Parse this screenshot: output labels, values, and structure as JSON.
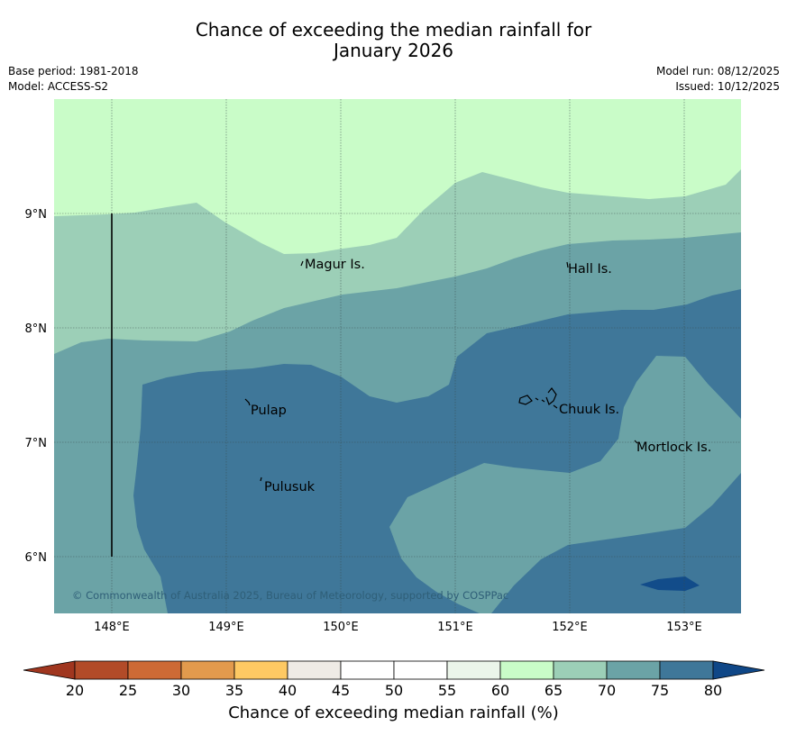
{
  "title": {
    "line1": "Chance of exceeding the median rainfall for",
    "line2": "January 2026"
  },
  "meta": {
    "base_period": "Base period: 1981-2018",
    "model": "Model: ACCESS-S2",
    "model_run": "Model run: 08/12/2025",
    "issued": "Issued: 10/12/2025"
  },
  "map": {
    "lon_range": [
      147.5,
      153.5
    ],
    "lat_range": [
      5.5,
      10.0
    ],
    "lon_ticks": [
      "148°E",
      "149°E",
      "150°E",
      "151°E",
      "152°E",
      "153°E"
    ],
    "lat_ticks": [
      "9°N",
      "8°N",
      "7°N",
      "6°N"
    ],
    "places": [
      "Magur Is.",
      "Hall Is.",
      "Pulap",
      "Chuuk Is.",
      "Mortlock Is.",
      "Pulusuk"
    ],
    "copyright": "© Commonwealth of Australia 2025, Bureau of Meteorology, supported by COSPPac",
    "category_colors": {
      "60-65": "#c9fcc8",
      "65-70": "#9ccfb7",
      "70-75": "#6ba3a6",
      "75-80": "#3f7799",
      "80+": "#124c8a"
    }
  },
  "colorbar": {
    "title": "Chance of exceeding median rainfall (%)",
    "ticks": [
      "20",
      "25",
      "30",
      "35",
      "40",
      "45",
      "50",
      "55",
      "60",
      "65",
      "70",
      "75",
      "80"
    ],
    "below_color": "#a0361f",
    "above_color": "#0f4787",
    "colors": [
      "#b24b28",
      "#cd6a35",
      "#e29a4d",
      "#fec963",
      "#efebe6",
      "#ffffff",
      "#ffffff",
      "#ebf5ea",
      "#c9fcc8",
      "#9ccfb7",
      "#6ba3a6",
      "#3f7799"
    ]
  }
}
